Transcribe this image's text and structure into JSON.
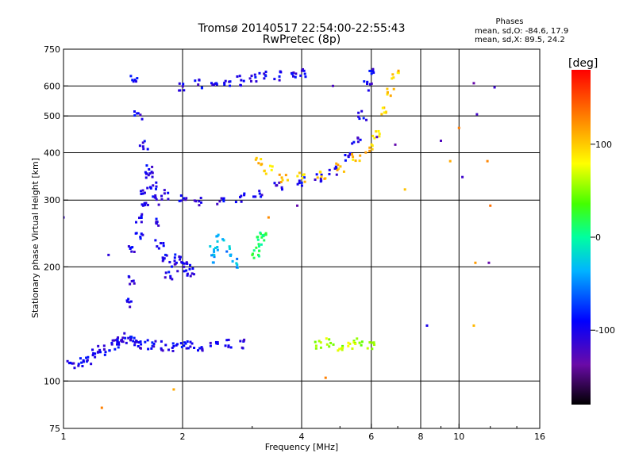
{
  "chart_data": {
    "type": "scatter",
    "title": "Tromsø 20140517 22:54:00-22:55:43",
    "subtitle": "RwPretec (8p)",
    "xlabel": "Frequency [MHz]",
    "ylabel": "Stationary phase Virtual Height [km]",
    "xscale": "log",
    "yscale": "log",
    "xlim": [
      1,
      16
    ],
    "ylim": [
      75,
      750
    ],
    "xticks": [
      1,
      2,
      4,
      6,
      8,
      10,
      16
    ],
    "yticks": [
      75,
      100,
      200,
      300,
      400,
      500,
      600,
      750
    ],
    "grid": true,
    "stats": {
      "title": "Phases",
      "line_o": "mean, sd,O: -84.6, 17.9",
      "line_x": "mean, sd,X:  89.5, 24.2"
    },
    "colorbar": {
      "label": "[deg]",
      "range": [
        -180,
        180
      ],
      "ticks": [
        -100,
        0,
        100
      ],
      "colormap": "rainbow"
    },
    "series": [
      {
        "trace": "o-mode low layer",
        "phase": -100,
        "x": [
          1.05,
          1.1,
          1.15,
          1.2,
          1.25,
          1.3,
          1.35,
          1.4,
          1.45,
          1.5,
          1.55,
          1.6,
          1.7,
          1.8,
          1.9,
          2.0,
          2.1,
          2.2,
          2.4,
          2.6,
          2.8
        ],
        "y": [
          110,
          112,
          114,
          118,
          120,
          123,
          125,
          127,
          128,
          127,
          126,
          125,
          124,
          124,
          123,
          123,
          124,
          124,
          125,
          126,
          125
        ]
      },
      {
        "trace": "o-mode column",
        "phase": -100,
        "x": [
          1.4,
          1.45,
          1.5,
          1.5,
          1.55,
          1.55,
          1.6,
          1.6,
          1.65,
          1.7,
          1.7,
          1.75,
          1.8,
          1.85,
          1.9,
          1.95,
          2.0,
          2.05,
          2.1
        ],
        "y": [
          130,
          160,
          185,
          220,
          240,
          270,
          290,
          320,
          350,
          300,
          260,
          230,
          210,
          190,
          200,
          210,
          205,
          200,
          195
        ]
      },
      {
        "trace": "o-mode F-layer",
        "phase": -100,
        "x": [
          1.5,
          1.55,
          1.6,
          1.65,
          1.7,
          1.8,
          2.0,
          2.2,
          2.5,
          2.8,
          3.1,
          3.5,
          4.0,
          4.4,
          4.8,
          5.2,
          5.5,
          5.7,
          5.9,
          6.0
        ],
        "y": [
          620,
          500,
          420,
          360,
          330,
          310,
          300,
          298,
          300,
          305,
          315,
          325,
          335,
          345,
          360,
          390,
          430,
          500,
          600,
          650
        ]
      },
      {
        "trace": "o-mode upper cusp",
        "phase": -100,
        "x": [
          2.0,
          2.2,
          2.4,
          2.6,
          2.8,
          3.0,
          3.2,
          3.5,
          3.8,
          4.0
        ],
        "y": [
          600,
          605,
          610,
          615,
          620,
          628,
          635,
          640,
          645,
          650
        ]
      },
      {
        "trace": "x-mode F-layer",
        "phase": 100,
        "x": [
          3.1,
          3.3,
          3.6,
          4.0,
          4.5,
          5.0,
          5.5,
          5.9,
          6.2,
          6.5,
          6.7,
          6.9
        ],
        "y": [
          380,
          360,
          345,
          345,
          350,
          365,
          385,
          410,
          450,
          520,
          580,
          640
        ]
      },
      {
        "trace": "x-mode low layer",
        "phase": 60,
        "x": [
          4.4,
          4.7,
          5.0,
          5.3,
          5.6,
          6.0
        ],
        "y": [
          125,
          126,
          124,
          125,
          126,
          124
        ]
      },
      {
        "trace": "green patch",
        "phase": 10,
        "x": [
          3.05,
          3.1,
          3.15,
          3.2
        ],
        "y": [
          215,
          225,
          235,
          245
        ]
      },
      {
        "trace": "cyan patch",
        "phase": -40,
        "x": [
          2.35,
          2.4,
          2.5,
          2.6,
          2.7
        ],
        "y": [
          210,
          225,
          240,
          220,
          205
        ]
      },
      {
        "trace": "scattered",
        "phase": -120,
        "x": [
          1.0,
          1.3,
          3.9,
          4.8,
          6.2,
          6.9,
          8.3,
          9.0,
          10.2,
          10.9,
          11.1,
          12.3,
          11.9
        ],
        "y": [
          270,
          215,
          290,
          600,
          440,
          420,
          140,
          430,
          345,
          610,
          505,
          595,
          205
        ]
      },
      {
        "trace": "scattered warm",
        "phase": 120,
        "x": [
          1.25,
          1.9,
          3.3,
          4.6,
          7.3,
          9.5,
          10.9,
          11.0,
          12.0,
          11.8,
          10.0
        ],
        "y": [
          85,
          95,
          270,
          102,
          320,
          380,
          140,
          205,
          290,
          380,
          465
        ]
      }
    ]
  }
}
